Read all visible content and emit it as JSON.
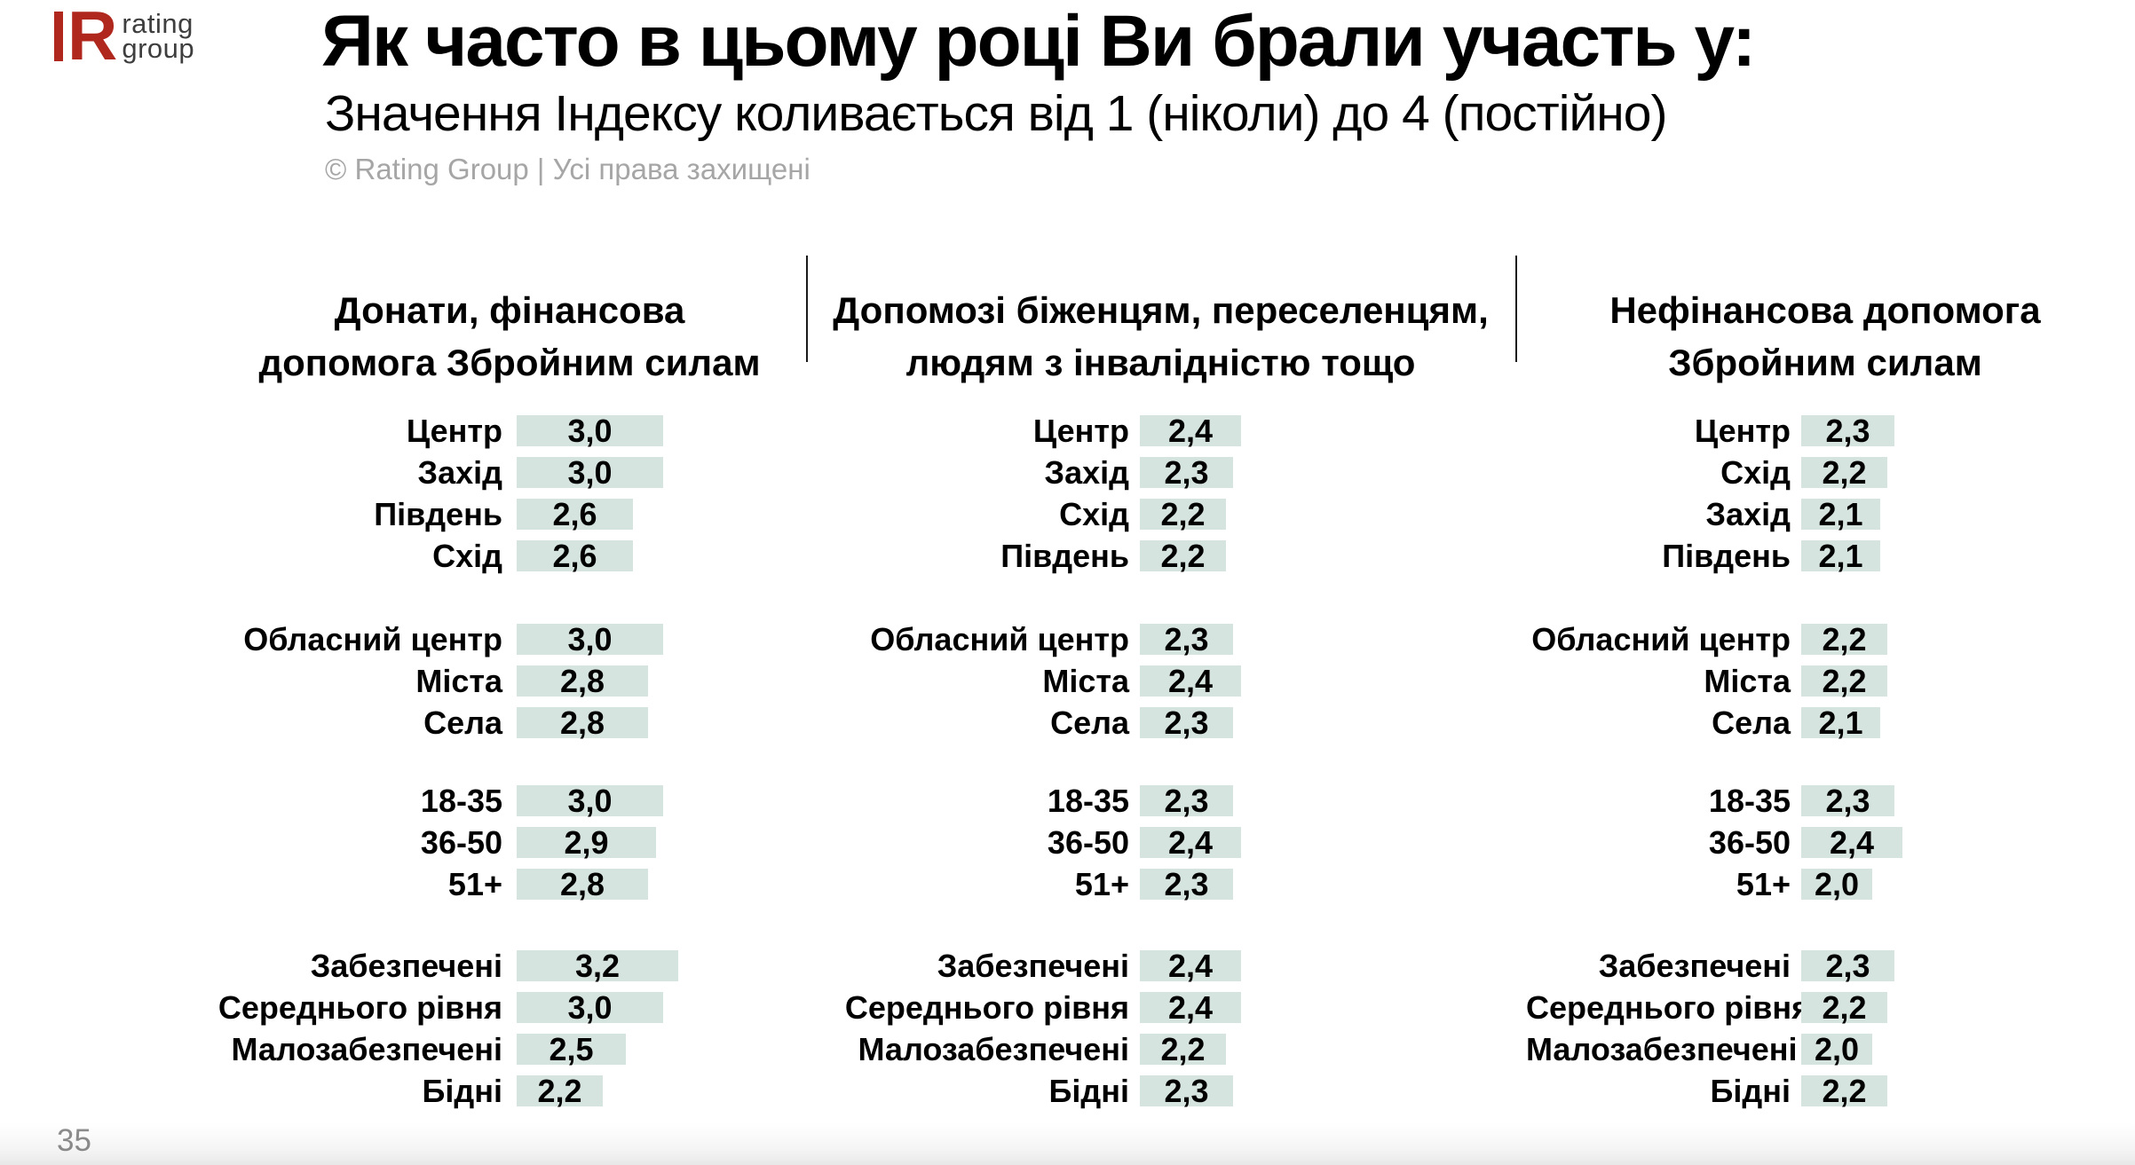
{
  "logo": {
    "mark": "R",
    "line1": "rating",
    "line2": "group"
  },
  "title": "Як часто в цьому році Ви брали участь у:",
  "subtitle": "Значення Індексу коливається від 1 (ніколи) до 4 (постійно)",
  "copyright": "© Rating Group | Усі права захищені",
  "page_number": "35",
  "colors": {
    "accent_red": "#b0271d",
    "bar_fill": "#d6e4e0",
    "gray_text": "#a6a6a6",
    "page_number_gray": "#8e8e8e",
    "divider": "#1a1a1a"
  },
  "chart_data": {
    "type": "bar",
    "orientation": "horizontal",
    "title": "Як часто в цьому році Ви брали участь у:",
    "subtitle": "Значення Індексу коливається від 1 (ніколи) до 4 (постійно)",
    "index_min": 1,
    "index_max": 4,
    "legend": "none",
    "panels": [
      {
        "header": "Донати, фінансова допомога Збройним силам",
        "header_lines": [
          "Донати, фінансова",
          "допомога Збройним силам"
        ],
        "groups": [
          {
            "rows": [
              {
                "label": "Центр",
                "value": 3.0,
                "display": "3,0"
              },
              {
                "label": "Захід",
                "value": 3.0,
                "display": "3,0"
              },
              {
                "label": "Південь",
                "value": 2.6,
                "display": "2,6"
              },
              {
                "label": "Схід",
                "value": 2.6,
                "display": "2,6"
              }
            ]
          },
          {
            "rows": [
              {
                "label": "Обласний центр",
                "value": 3.0,
                "display": "3,0"
              },
              {
                "label": "Міста",
                "value": 2.8,
                "display": "2,8"
              },
              {
                "label": "Села",
                "value": 2.8,
                "display": "2,8"
              }
            ]
          },
          {
            "rows": [
              {
                "label": "18-35",
                "value": 3.0,
                "display": "3,0"
              },
              {
                "label": "36-50",
                "value": 2.9,
                "display": "2,9"
              },
              {
                "label": "51+",
                "value": 2.8,
                "display": "2,8"
              }
            ]
          },
          {
            "rows": [
              {
                "label": "Забезпечені",
                "value": 3.2,
                "display": "3,2"
              },
              {
                "label": "Середнього рівня",
                "value": 3.0,
                "display": "3,0"
              },
              {
                "label": "Малозабезпечені",
                "value": 2.5,
                "display": "2,5"
              },
              {
                "label": "Бідні",
                "value": 2.2,
                "display": "2,2"
              }
            ]
          }
        ]
      },
      {
        "header": "Допомозі біженцям, переселенцям, людям з інвалідністю тощо",
        "header_lines": [
          "Допомозі біженцям, переселенцям,",
          "людям з інвалідністю тощо"
        ],
        "groups": [
          {
            "rows": [
              {
                "label": "Центр",
                "value": 2.4,
                "display": "2,4"
              },
              {
                "label": "Захід",
                "value": 2.3,
                "display": "2,3"
              },
              {
                "label": "Схід",
                "value": 2.2,
                "display": "2,2"
              },
              {
                "label": "Південь",
                "value": 2.2,
                "display": "2,2"
              }
            ]
          },
          {
            "rows": [
              {
                "label": "Обласний центр",
                "value": 2.3,
                "display": "2,3"
              },
              {
                "label": "Міста",
                "value": 2.4,
                "display": "2,4"
              },
              {
                "label": "Села",
                "value": 2.3,
                "display": "2,3"
              }
            ]
          },
          {
            "rows": [
              {
                "label": "18-35",
                "value": 2.3,
                "display": "2,3"
              },
              {
                "label": "36-50",
                "value": 2.4,
                "display": "2,4"
              },
              {
                "label": "51+",
                "value": 2.3,
                "display": "2,3"
              }
            ]
          },
          {
            "rows": [
              {
                "label": "Забезпечені",
                "value": 2.4,
                "display": "2,4"
              },
              {
                "label": "Середнього рівня",
                "value": 2.4,
                "display": "2,4"
              },
              {
                "label": "Малозабезпечені",
                "value": 2.2,
                "display": "2,2"
              },
              {
                "label": "Бідні",
                "value": 2.3,
                "display": "2,3"
              }
            ]
          }
        ]
      },
      {
        "header": "Нефінансова допомога Збройним силам",
        "header_lines": [
          "Нефінансова допомога",
          "Збройним силам"
        ],
        "groups": [
          {
            "rows": [
              {
                "label": "Центр",
                "value": 2.3,
                "display": "2,3"
              },
              {
                "label": "Схід",
                "value": 2.2,
                "display": "2,2"
              },
              {
                "label": "Захід",
                "value": 2.1,
                "display": "2,1"
              },
              {
                "label": "Південь",
                "value": 2.1,
                "display": "2,1"
              }
            ]
          },
          {
            "rows": [
              {
                "label": "Обласний центр",
                "value": 2.2,
                "display": "2,2"
              },
              {
                "label": "Міста",
                "value": 2.2,
                "display": "2,2"
              },
              {
                "label": "Села",
                "value": 2.1,
                "display": "2,1"
              }
            ]
          },
          {
            "rows": [
              {
                "label": "18-35",
                "value": 2.3,
                "display": "2,3"
              },
              {
                "label": "36-50",
                "value": 2.4,
                "display": "2,4"
              },
              {
                "label": "51+",
                "value": 2.0,
                "display": "2,0"
              }
            ]
          },
          {
            "rows": [
              {
                "label": "Забезпечені",
                "value": 2.3,
                "display": "2,3"
              },
              {
                "label": "Середнього рівня",
                "value": 2.2,
                "display": "2,2"
              },
              {
                "label": "Малозабезпечені",
                "value": 2.0,
                "display": "2,0"
              },
              {
                "label": "Бідні",
                "value": 2.2,
                "display": "2,2"
              }
            ]
          }
        ]
      }
    ]
  }
}
